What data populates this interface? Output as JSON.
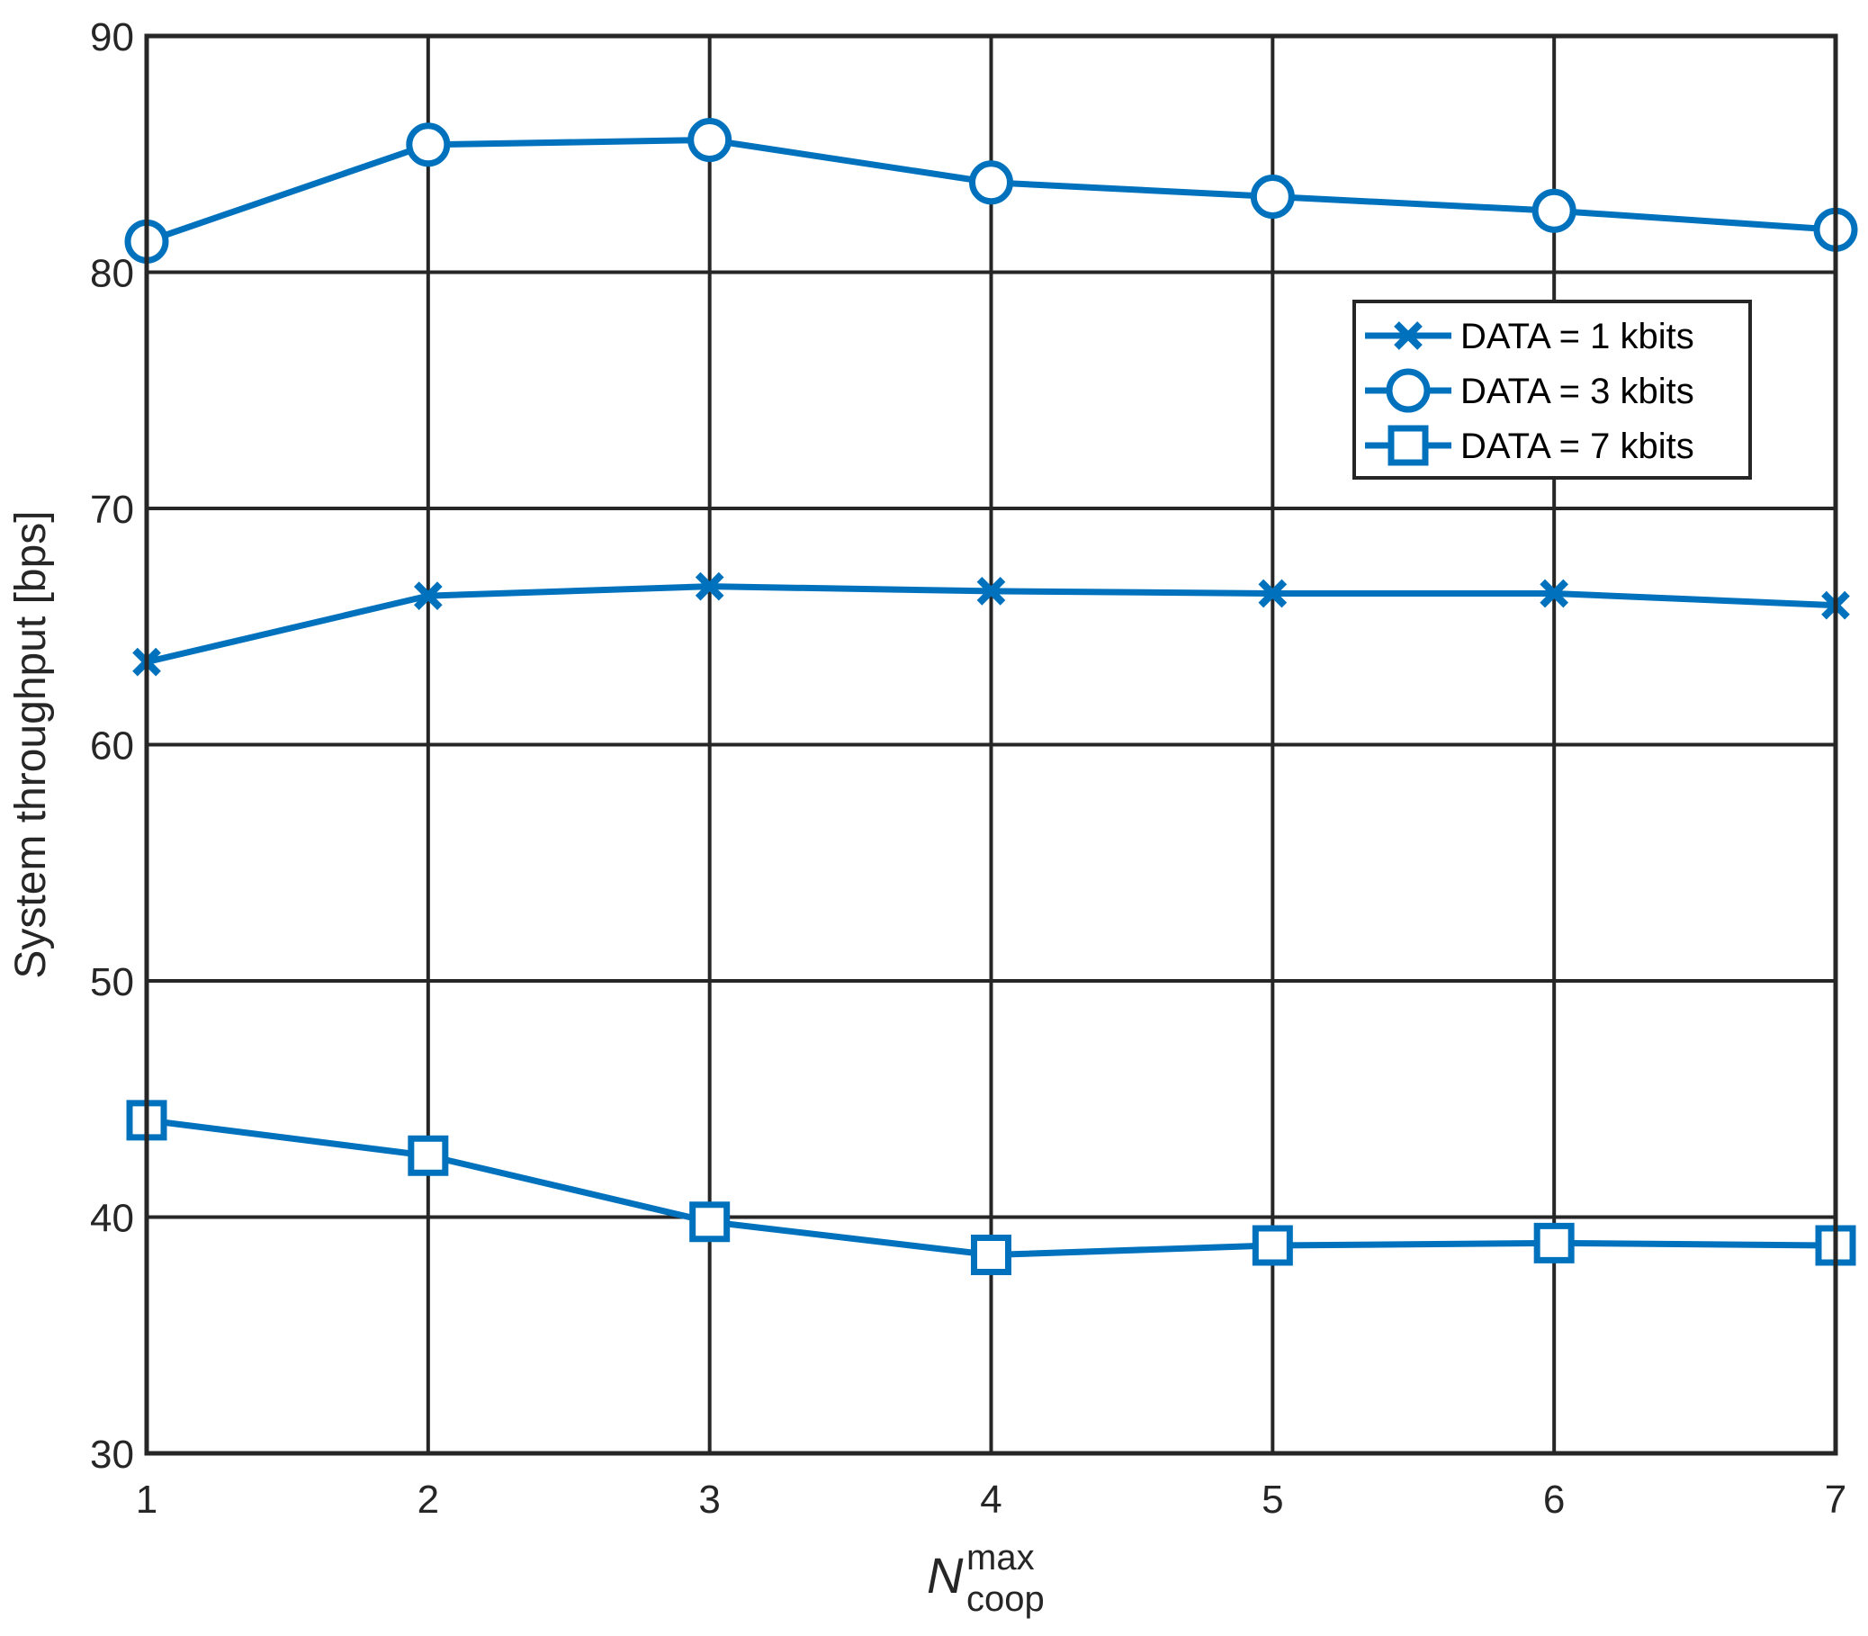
{
  "chart_data": {
    "type": "line",
    "x": [
      1,
      2,
      3,
      4,
      5,
      6,
      7
    ],
    "xlim": [
      1,
      7
    ],
    "ylim": [
      30,
      90
    ],
    "xticks": [
      "1",
      "2",
      "3",
      "4",
      "5",
      "6",
      "7"
    ],
    "yticks": [
      "30",
      "40",
      "50",
      "60",
      "70",
      "80",
      "90"
    ],
    "ylabel": "System throughput [bps]",
    "xlabel": {
      "main": "N",
      "superscript": "max",
      "subscript": "coop"
    },
    "grid": true,
    "legend_position": "top-right",
    "line_color": "#0072BD",
    "series": [
      {
        "name": "DATA = 1 kbits",
        "marker": "x",
        "values": [
          63.5,
          66.3,
          66.7,
          66.5,
          66.4,
          66.4,
          65.9
        ]
      },
      {
        "name": "DATA = 3 kbits",
        "marker": "circle",
        "values": [
          81.3,
          85.4,
          85.6,
          83.8,
          83.2,
          82.6,
          81.8
        ]
      },
      {
        "name": "DATA = 7 kbits",
        "marker": "square",
        "values": [
          44.1,
          42.6,
          39.8,
          38.4,
          38.8,
          38.9,
          38.8
        ]
      }
    ]
  }
}
